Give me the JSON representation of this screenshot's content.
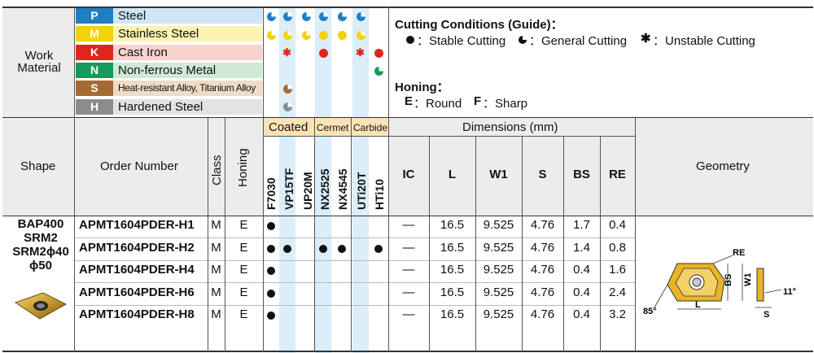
{
  "work_material": {
    "label_line1": "Work",
    "label_line2": "Material",
    "materials": [
      {
        "code": "P",
        "name": "Steel",
        "color": "#1f7fc4",
        "name_bg": "#cfe6f6"
      },
      {
        "code": "M",
        "name": "Stainless Steel",
        "color": "#f2d20a",
        "name_bg": "#fbf3b0"
      },
      {
        "code": "K",
        "name": "Cast Iron",
        "color": "#e0261c",
        "name_bg": "#f8d2cc"
      },
      {
        "code": "N",
        "name": "Non-ferrous Metal",
        "color": "#18985a",
        "name_bg": "#cfe9d6"
      },
      {
        "code": "S",
        "name": "Heat-resistant Alloy, Titanium Alloy",
        "color": "#a56a32",
        "name_bg": "#eedcc6"
      },
      {
        "code": "H",
        "name": "Hardened Steel",
        "color": "#8c8c8c",
        "name_bg": "#e3e3e3"
      }
    ]
  },
  "legend": {
    "cutting_title": "Cutting Conditions (Guide)：",
    "stable": "：Stable Cutting",
    "general": "：General Cutting",
    "unstable": "：Unstable Cutting",
    "honing_title": "Honing：",
    "round_code": "E",
    "round_label": "：Round",
    "sharp_code": "F",
    "sharp_label": "：Sharp"
  },
  "headers": {
    "shape": "Shape",
    "order_number": "Order Number",
    "class": "Class",
    "honing": "Honing",
    "coated": "Coated",
    "cermet": "Cermet",
    "carbide": "Carbide",
    "dimensions": "Dimensions (mm)",
    "geometry": "Geometry",
    "grades": [
      "F7030",
      "VP15TF",
      "UP20M",
      "NX2525",
      "NX4545",
      "UTi20T",
      "HTi10"
    ],
    "dims": [
      "IC",
      "L",
      "W1",
      "S",
      "BS",
      "RE"
    ]
  },
  "shape_label": {
    "line1": "BAP400",
    "line2": "SRM2",
    "line3": "SRM2ϕ40",
    "line4": "ϕ50"
  },
  "rows": [
    {
      "order": "APMT1604PDER-H1",
      "class": "M",
      "honing": "E",
      "grades": [
        1,
        0,
        0,
        0,
        0,
        0,
        0
      ],
      "ic": "—",
      "l": "16.5",
      "w1": "9.525",
      "s": "4.76",
      "bs": "1.7",
      "re": "0.4"
    },
    {
      "order": "APMT1604PDER-H2",
      "class": "M",
      "honing": "E",
      "grades": [
        1,
        1,
        0,
        1,
        1,
        0,
        1
      ],
      "ic": "—",
      "l": "16.5",
      "w1": "9.525",
      "s": "4.76",
      "bs": "1.4",
      "re": "0.8"
    },
    {
      "order": "APMT1604PDER-H4",
      "class": "M",
      "honing": "E",
      "grades": [
        1,
        0,
        0,
        0,
        0,
        0,
        0
      ],
      "ic": "—",
      "l": "16.5",
      "w1": "9.525",
      "s": "4.76",
      "bs": "0.4",
      "re": "1.6"
    },
    {
      "order": "APMT1604PDER-H6",
      "class": "M",
      "honing": "E",
      "grades": [
        1,
        0,
        0,
        0,
        0,
        0,
        0
      ],
      "ic": "—",
      "l": "16.5",
      "w1": "9.525",
      "s": "4.76",
      "bs": "0.4",
      "re": "2.4"
    },
    {
      "order": "APMT1604PDER-H8",
      "class": "M",
      "honing": "E",
      "grades": [
        1,
        0,
        0,
        0,
        0,
        0,
        0
      ],
      "ic": "—",
      "l": "16.5",
      "w1": "9.525",
      "s": "4.76",
      "bs": "0.4",
      "re": "3.2"
    }
  ],
  "geometry_labels": {
    "re": "RE",
    "bs": "BS",
    "w1": "W1",
    "l": "L",
    "s": "S",
    "angle1": "11°",
    "angle2": "85°"
  }
}
